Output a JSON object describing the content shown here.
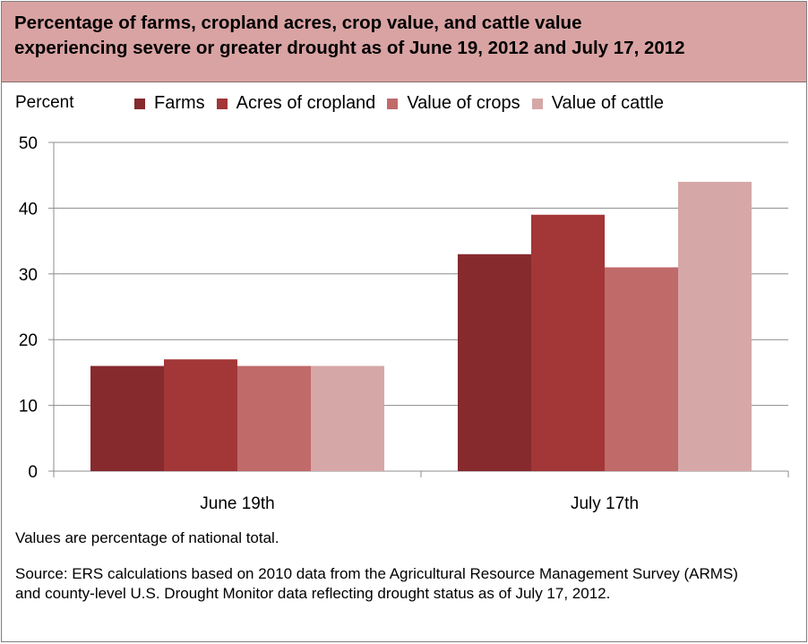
{
  "chart_data": {
    "type": "bar",
    "title": "Percentage of farms, cropland acres, crop value, and cattle value experiencing severe or greater drought as of June 19, 2012 and July 17, 2012",
    "title_lines": [
      "Percentage of farms, cropland acres, crop value, and cattle value",
      "experiencing severe or greater drought as of June 19, 2012 and July 17, 2012"
    ],
    "ylabel": "Percent",
    "xlabel": "",
    "categories": [
      "June 19th",
      "July 17th"
    ],
    "series": [
      {
        "name": "Farms",
        "color": "#862a2e",
        "values": [
          16,
          33
        ]
      },
      {
        "name": "Acres of cropland",
        "color": "#a33637",
        "values": [
          17,
          39
        ]
      },
      {
        "name": "Value of crops",
        "color": "#c06a6a",
        "values": [
          16,
          31
        ]
      },
      {
        "name": "Value of cattle",
        "color": "#d6a7a7",
        "values": [
          16,
          44
        ]
      }
    ],
    "ylim": [
      0,
      50
    ],
    "yticks": [
      0,
      10,
      20,
      30,
      40,
      50
    ],
    "grid": true,
    "legend_position": "top"
  },
  "colors": {
    "header_bg": "#d9a3a3"
  },
  "notes": {
    "values_note": "Values are percentage of national total.",
    "source": "Source:  ERS calculations based on 2010 data from the Agricultural Resource Management Survey (ARMS) and county-level U.S. Drought Monitor data reflecting drought status as of July 17, 2012."
  }
}
